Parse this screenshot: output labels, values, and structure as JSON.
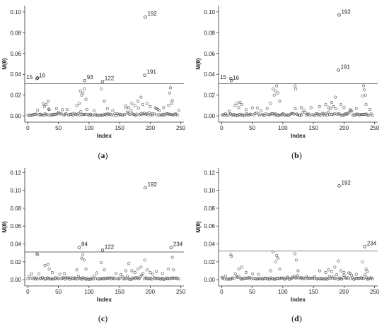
{
  "figure": {
    "panel_count": 4
  },
  "chart_data": [
    {
      "type": "scatter",
      "caption": "(a)",
      "caption_parts": [
        "(",
        "a",
        ")"
      ],
      "xlabel": "Index",
      "ylabel": "M(θ)",
      "xlim": [
        -5,
        255
      ],
      "ylim": [
        -0.006,
        0.106
      ],
      "xticks": [
        0,
        50,
        100,
        150,
        200,
        250
      ],
      "yticks": [
        0.0,
        0.02,
        0.04,
        0.06,
        0.08,
        0.1
      ],
      "ytick_labels": [
        "0.00",
        "0.02",
        "0.04",
        "0.06",
        "0.08",
        "0.10"
      ],
      "threshold": 0.031,
      "seed": 11,
      "highlighted": [
        {
          "x": 15,
          "y": 0.036,
          "label": "15"
        },
        {
          "x": 16,
          "y": 0.0365,
          "label": "16"
        },
        {
          "x": 93,
          "y": 0.034,
          "label": "93"
        },
        {
          "x": 122,
          "y": 0.033,
          "label": "122"
        },
        {
          "x": 191,
          "y": 0.039,
          "label": "191"
        },
        {
          "x": 192,
          "y": 0.095,
          "label": "192"
        }
      ],
      "points": [
        {
          "x": 25,
          "y": 0.012
        },
        {
          "x": 27,
          "y": 0.009
        },
        {
          "x": 30,
          "y": 0.011
        },
        {
          "x": 33,
          "y": 0.014
        },
        {
          "x": 35,
          "y": 0.006
        },
        {
          "x": 47,
          "y": 0.007
        },
        {
          "x": 80,
          "y": 0.01
        },
        {
          "x": 84,
          "y": 0.012
        },
        {
          "x": 86,
          "y": 0.024
        },
        {
          "x": 88,
          "y": 0.02
        },
        {
          "x": 90,
          "y": 0.022
        },
        {
          "x": 92,
          "y": 0.026
        },
        {
          "x": 95,
          "y": 0.016
        },
        {
          "x": 120,
          "y": 0.026
        },
        {
          "x": 125,
          "y": 0.014
        },
        {
          "x": 130,
          "y": 0.007
        },
        {
          "x": 160,
          "y": 0.01
        },
        {
          "x": 165,
          "y": 0.008
        },
        {
          "x": 170,
          "y": 0.012
        },
        {
          "x": 175,
          "y": 0.01
        },
        {
          "x": 180,
          "y": 0.014
        },
        {
          "x": 185,
          "y": 0.018
        },
        {
          "x": 188,
          "y": 0.011
        },
        {
          "x": 195,
          "y": 0.012
        },
        {
          "x": 200,
          "y": 0.009
        },
        {
          "x": 210,
          "y": 0.007
        },
        {
          "x": 215,
          "y": 0.005
        },
        {
          "x": 222,
          "y": 0.008
        },
        {
          "x": 230,
          "y": 0.01
        },
        {
          "x": 232,
          "y": 0.022
        },
        {
          "x": 233,
          "y": 0.027
        },
        {
          "x": 235,
          "y": 0.012
        },
        {
          "x": 236,
          "y": 0.015
        }
      ]
    },
    {
      "type": "scatter",
      "caption": "(b)",
      "caption_parts": [
        "(",
        "b",
        ")"
      ],
      "xlabel": "Index",
      "ylabel": "M(θ)",
      "xlim": [
        -5,
        255
      ],
      "ylim": [
        -0.006,
        0.106
      ],
      "xticks": [
        0,
        50,
        100,
        150,
        200,
        250
      ],
      "yticks": [
        0.0,
        0.02,
        0.04,
        0.06,
        0.08,
        0.1
      ],
      "ytick_labels": [
        "0.00",
        "0.02",
        "0.04",
        "0.06",
        "0.08",
        "0.10"
      ],
      "threshold": 0.031,
      "seed": 23,
      "highlighted": [
        {
          "x": 15,
          "y": 0.036,
          "label": "15"
        },
        {
          "x": 16,
          "y": 0.034,
          "label": "16"
        },
        {
          "x": 191,
          "y": 0.044,
          "label": "191"
        },
        {
          "x": 192,
          "y": 0.097,
          "label": "192"
        }
      ],
      "points": [
        {
          "x": 22,
          "y": 0.01
        },
        {
          "x": 25,
          "y": 0.012
        },
        {
          "x": 28,
          "y": 0.008
        },
        {
          "x": 30,
          "y": 0.013
        },
        {
          "x": 33,
          "y": 0.011
        },
        {
          "x": 40,
          "y": 0.006
        },
        {
          "x": 80,
          "y": 0.012
        },
        {
          "x": 84,
          "y": 0.026
        },
        {
          "x": 86,
          "y": 0.02
        },
        {
          "x": 88,
          "y": 0.024
        },
        {
          "x": 90,
          "y": 0.029
        },
        {
          "x": 92,
          "y": 0.022
        },
        {
          "x": 95,
          "y": 0.014
        },
        {
          "x": 120,
          "y": 0.029
        },
        {
          "x": 121,
          "y": 0.026
        },
        {
          "x": 130,
          "y": 0.008
        },
        {
          "x": 160,
          "y": 0.009
        },
        {
          "x": 170,
          "y": 0.011
        },
        {
          "x": 175,
          "y": 0.008
        },
        {
          "x": 180,
          "y": 0.013
        },
        {
          "x": 183,
          "y": 0.009
        },
        {
          "x": 186,
          "y": 0.018
        },
        {
          "x": 195,
          "y": 0.011
        },
        {
          "x": 200,
          "y": 0.008
        },
        {
          "x": 210,
          "y": 0.006
        },
        {
          "x": 220,
          "y": 0.007
        },
        {
          "x": 230,
          "y": 0.019
        },
        {
          "x": 232,
          "y": 0.029
        },
        {
          "x": 233,
          "y": 0.025
        },
        {
          "x": 235,
          "y": 0.02
        },
        {
          "x": 236,
          "y": 0.011
        }
      ]
    },
    {
      "type": "scatter",
      "caption": "(c)",
      "caption_parts": [
        "(",
        "c",
        ")"
      ],
      "xlabel": "Index",
      "ylabel": "M(θ)",
      "xlim": [
        -5,
        255
      ],
      "ylim": [
        -0.007,
        0.125
      ],
      "xticks": [
        0,
        50,
        100,
        150,
        200,
        250
      ],
      "yticks": [
        0.0,
        0.02,
        0.04,
        0.06,
        0.08,
        0.1,
        0.12
      ],
      "ytick_labels": [
        "0.00",
        "0.02",
        "0.04",
        "0.06",
        "0.08",
        "0.10",
        "0.12"
      ],
      "threshold": 0.031,
      "seed": 37,
      "highlighted": [
        {
          "x": 84,
          "y": 0.036,
          "label": "84"
        },
        {
          "x": 122,
          "y": 0.033,
          "label": "122"
        },
        {
          "x": 192,
          "y": 0.103,
          "label": "192"
        },
        {
          "x": 234,
          "y": 0.036,
          "label": "234"
        }
      ],
      "points": [
        {
          "x": 15,
          "y": 0.029
        },
        {
          "x": 16,
          "y": 0.028
        },
        {
          "x": 28,
          "y": 0.016
        },
        {
          "x": 33,
          "y": 0.017
        },
        {
          "x": 35,
          "y": 0.012
        },
        {
          "x": 40,
          "y": 0.008
        },
        {
          "x": 60,
          "y": 0.007
        },
        {
          "x": 80,
          "y": 0.011
        },
        {
          "x": 88,
          "y": 0.024
        },
        {
          "x": 90,
          "y": 0.028
        },
        {
          "x": 92,
          "y": 0.022
        },
        {
          "x": 95,
          "y": 0.012
        },
        {
          "x": 120,
          "y": 0.019
        },
        {
          "x": 125,
          "y": 0.011
        },
        {
          "x": 160,
          "y": 0.01
        },
        {
          "x": 165,
          "y": 0.018
        },
        {
          "x": 170,
          "y": 0.01
        },
        {
          "x": 175,
          "y": 0.008
        },
        {
          "x": 180,
          "y": 0.012
        },
        {
          "x": 185,
          "y": 0.014
        },
        {
          "x": 191,
          "y": 0.022
        },
        {
          "x": 195,
          "y": 0.011
        },
        {
          "x": 200,
          "y": 0.008
        },
        {
          "x": 210,
          "y": 0.009
        },
        {
          "x": 220,
          "y": 0.007
        },
        {
          "x": 230,
          "y": 0.012
        },
        {
          "x": 236,
          "y": 0.025
        },
        {
          "x": 238,
          "y": 0.011
        }
      ]
    },
    {
      "type": "scatter",
      "caption": "(d)",
      "caption_parts": [
        "(",
        "d",
        ")"
      ],
      "xlabel": "Index",
      "ylabel": "M(θ)",
      "xlim": [
        -5,
        255
      ],
      "ylim": [
        -0.007,
        0.125
      ],
      "xticks": [
        0,
        50,
        100,
        150,
        200,
        250
      ],
      "yticks": [
        0.0,
        0.02,
        0.04,
        0.06,
        0.08,
        0.1,
        0.12
      ],
      "ytick_labels": [
        "0.00",
        "0.02",
        "0.04",
        "0.06",
        "0.08",
        "0.10",
        "0.12"
      ],
      "threshold": 0.032,
      "seed": 53,
      "highlighted": [
        {
          "x": 192,
          "y": 0.105,
          "label": "192"
        },
        {
          "x": 234,
          "y": 0.037,
          "label": "234"
        }
      ],
      "points": [
        {
          "x": 15,
          "y": 0.028
        },
        {
          "x": 16,
          "y": 0.026
        },
        {
          "x": 28,
          "y": 0.012
        },
        {
          "x": 33,
          "y": 0.014
        },
        {
          "x": 40,
          "y": 0.008
        },
        {
          "x": 60,
          "y": 0.006
        },
        {
          "x": 80,
          "y": 0.01
        },
        {
          "x": 84,
          "y": 0.031
        },
        {
          "x": 88,
          "y": 0.02
        },
        {
          "x": 90,
          "y": 0.027
        },
        {
          "x": 92,
          "y": 0.024
        },
        {
          "x": 95,
          "y": 0.012
        },
        {
          "x": 120,
          "y": 0.029
        },
        {
          "x": 122,
          "y": 0.022
        },
        {
          "x": 125,
          "y": 0.01
        },
        {
          "x": 160,
          "y": 0.01
        },
        {
          "x": 170,
          "y": 0.008
        },
        {
          "x": 175,
          "y": 0.011
        },
        {
          "x": 180,
          "y": 0.009
        },
        {
          "x": 185,
          "y": 0.014
        },
        {
          "x": 191,
          "y": 0.021
        },
        {
          "x": 195,
          "y": 0.01
        },
        {
          "x": 200,
          "y": 0.008
        },
        {
          "x": 210,
          "y": 0.007
        },
        {
          "x": 220,
          "y": 0.006
        },
        {
          "x": 230,
          "y": 0.02
        },
        {
          "x": 236,
          "y": 0.012
        },
        {
          "x": 238,
          "y": 0.009
        }
      ]
    }
  ]
}
